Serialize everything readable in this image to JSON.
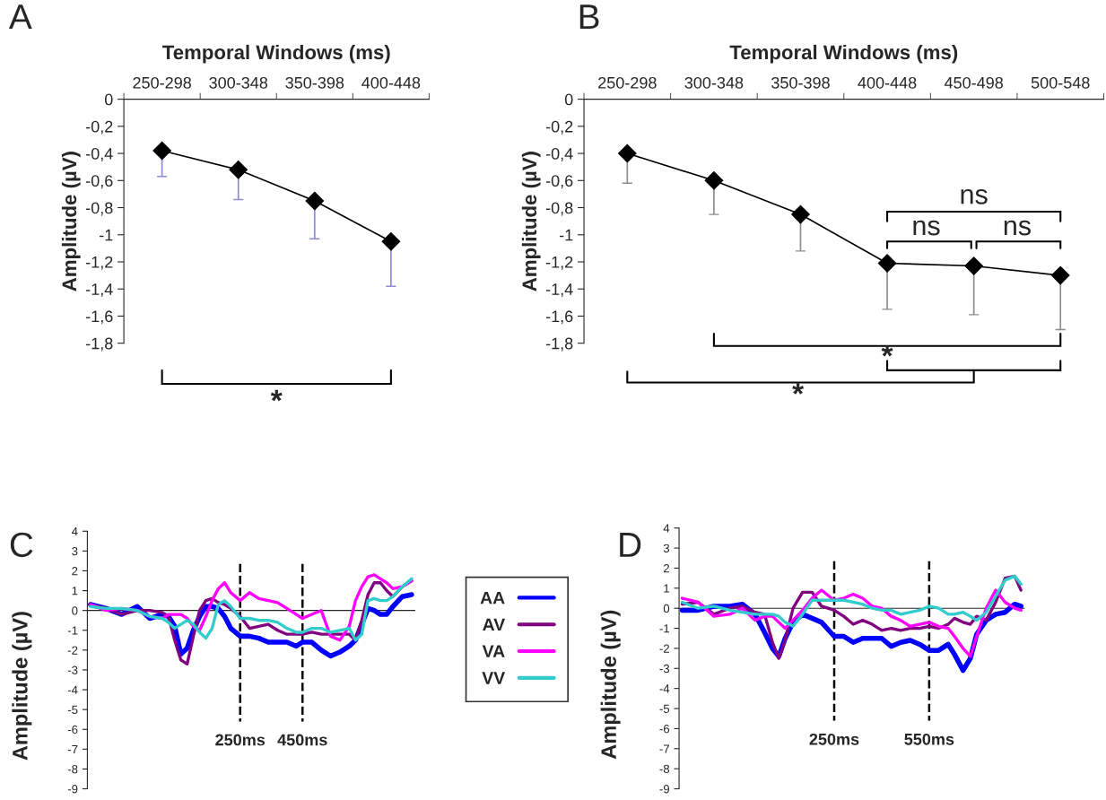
{
  "chart_data": [
    {
      "type": "line",
      "title": "A",
      "xlabel": "Temporal Windows (ms)",
      "ylabel": "Amplitude (µV)",
      "categories": [
        "250-298",
        "300-348",
        "350-398",
        "400-448"
      ],
      "series": [
        {
          "color": "#000000",
          "values": [
            -0.38,
            -0.52,
            -0.75,
            -1.05
          ],
          "errors": [
            [
              -0.57,
              -0.38
            ],
            [
              -0.74,
              -0.52
            ],
            [
              -1.03,
              -0.75
            ],
            [
              -1.38,
              -1.05
            ]
          ]
        }
      ],
      "ylim": [
        -1.8,
        0
      ],
      "yticks": [
        0,
        {
          "value": -0.2,
          "label": "-0,2"
        },
        {
          "value": -0.4,
          "label": "-0,4"
        },
        {
          "value": -0.6,
          "label": "-0,6"
        },
        {
          "value": -0.8,
          "label": "-0,8"
        },
        -1,
        {
          "value": -1.2,
          "label": "-1,2"
        },
        {
          "value": -1.4,
          "label": "-1,4"
        },
        {
          "value": -1.6,
          "label": "-1,6"
        },
        {
          "value": -1.8,
          "label": "-1,8"
        }
      ],
      "marker": "diamond",
      "annotations": [
        "*"
      ]
    },
    {
      "type": "line",
      "title": "B",
      "xlabel": "Temporal Windows (ms)",
      "ylabel": "Amplitude (µV)",
      "categories": [
        "250-298",
        "300-348",
        "350-398",
        "400-448",
        "450-498",
        "500-548"
      ],
      "series": [
        {
          "color": "#000000",
          "values": [
            -0.4,
            -0.6,
            -0.85,
            -1.21,
            -1.23,
            -1.3
          ],
          "errors": [
            [
              -0.62,
              -0.4
            ],
            [
              -0.85,
              -0.6
            ],
            [
              -1.12,
              -0.85
            ],
            [
              -1.55,
              -1.21
            ],
            [
              -1.59,
              -1.23
            ],
            [
              -1.7,
              -1.3
            ]
          ]
        }
      ],
      "ylim": [
        -1.8,
        0
      ],
      "yticks": [
        0,
        {
          "value": -0.2,
          "label": "-0,2"
        },
        {
          "value": -0.4,
          "label": "-0,4"
        },
        {
          "value": -0.6,
          "label": "-0,6"
        },
        {
          "value": -0.8,
          "label": "-0,8"
        },
        -1,
        {
          "value": -1.2,
          "label": "-1,2"
        },
        {
          "value": -1.4,
          "label": "-1,4"
        },
        {
          "value": -1.6,
          "label": "-1,6"
        },
        {
          "value": -1.8,
          "label": "-1,8"
        }
      ],
      "marker": "diamond",
      "annotations": [
        "ns",
        "ns",
        "ns",
        "*",
        "*"
      ]
    },
    {
      "type": "line",
      "title": "C",
      "ylabel": "Amplitude (µV)",
      "x": [
        -230,
        -180,
        -130,
        -80,
        -40,
        0,
        20,
        40,
        60,
        80,
        100,
        120,
        140,
        160,
        180,
        200,
        220,
        250,
        280,
        310,
        340,
        370,
        400,
        430,
        450,
        480,
        510,
        540,
        570,
        600,
        620,
        640,
        660,
        680,
        700,
        720,
        740,
        770,
        800
      ],
      "series": [
        {
          "name": "AA",
          "color": "#0000ff",
          "values": [
            0.3,
            0.1,
            -0.2,
            0.2,
            -0.4,
            -0.2,
            -0.3,
            -0.8,
            -2.2,
            -1.9,
            -1.0,
            -0.3,
            0.2,
            0.2,
            0.1,
            -0.3,
            -0.9,
            -1.3,
            -1.3,
            -1.4,
            -1.6,
            -1.6,
            -1.6,
            -1.8,
            -1.6,
            -1.6,
            -2.0,
            -2.3,
            -2.1,
            -1.8,
            -1.5,
            -0.7,
            0.1,
            0.0,
            -0.2,
            -0.2,
            0.2,
            0.7,
            0.8
          ]
        },
        {
          "name": "AV",
          "color": "#800080",
          "values": [
            0.3,
            0.1,
            -0.2,
            0.0,
            0.0,
            -0.1,
            -0.3,
            -1.5,
            -2.5,
            -2.7,
            -1.3,
            0.0,
            0.5,
            0.6,
            0.4,
            0.3,
            0.1,
            -0.3,
            -0.9,
            -0.8,
            -0.7,
            -1.0,
            -1.2,
            -1.2,
            -1.2,
            -1.1,
            -1.2,
            -1.2,
            -1.2,
            -1.2,
            -1.5,
            -0.5,
            0.8,
            1.4,
            1.4,
            1.0,
            0.7,
            1.2,
            1.5
          ]
        },
        {
          "name": "VA",
          "color": "#ff00ff",
          "values": [
            0.3,
            0.0,
            0.1,
            0.0,
            -0.3,
            -0.4,
            -0.2,
            -0.2,
            -0.2,
            -0.4,
            -0.8,
            -1.0,
            -0.3,
            0.5,
            1.1,
            1.4,
            0.9,
            0.5,
            0.9,
            0.6,
            0.5,
            0.4,
            0.1,
            -0.2,
            -0.4,
            -0.2,
            0.0,
            -1.3,
            -1.5,
            -0.8,
            0.5,
            1.2,
            1.7,
            1.8,
            1.6,
            1.4,
            1.1,
            1.2,
            1.5
          ]
        },
        {
          "name": "VV",
          "color": "#33cccc",
          "values": [
            0.2,
            0.1,
            0.1,
            0.0,
            -0.3,
            -0.4,
            -0.6,
            -0.9,
            -0.7,
            -0.5,
            -0.7,
            -1.1,
            -1.4,
            -0.9,
            0.3,
            0.5,
            0.2,
            -0.4,
            -0.4,
            -0.5,
            -0.5,
            -0.6,
            -0.9,
            -1.1,
            -1.1,
            -0.9,
            -0.9,
            -1.1,
            -1.0,
            -0.9,
            -1.5,
            -1.2,
            0.5,
            0.6,
            0.5,
            0.5,
            0.7,
            1.2,
            1.6
          ]
        }
      ],
      "xlim": [
        -240,
        810
      ],
      "ylim": [
        -9,
        4
      ],
      "yticks": [
        -9,
        -8,
        -7,
        -6,
        -5,
        -4,
        -3,
        -2,
        -1,
        0,
        1,
        2,
        3,
        4
      ],
      "tick_labels": "y",
      "legend": "right",
      "ref_lines": [
        {
          "axis": "x",
          "value": 250,
          "label": "250ms",
          "color": "#000000",
          "line_style": "dashed"
        },
        {
          "axis": "x",
          "value": 450,
          "label": "450ms",
          "color": "#000000",
          "line_style": "dashed"
        }
      ]
    },
    {
      "type": "line",
      "title": "D",
      "ylabel": "Amplitude (µV)",
      "x": [
        -230,
        -180,
        -130,
        -80,
        -40,
        0,
        30,
        55,
        75,
        95,
        120,
        150,
        180,
        210,
        250,
        280,
        310,
        340,
        370,
        400,
        430,
        460,
        490,
        520,
        550,
        580,
        610,
        630,
        657,
        680,
        700,
        730,
        760,
        790,
        820,
        840
      ],
      "series": [
        {
          "color": "#0000ff",
          "values": [
            -0.1,
            -0.1,
            0.1,
            0.1,
            0.2,
            -0.3,
            -1.2,
            -2.0,
            -2.4,
            -1.5,
            -0.7,
            -0.3,
            -0.5,
            -0.7,
            -1.4,
            -1.4,
            -1.7,
            -1.5,
            -1.5,
            -1.5,
            -1.9,
            -1.7,
            -1.6,
            -1.8,
            -2.1,
            -2.1,
            -1.8,
            -2.3,
            -3.1,
            -2.5,
            -1.3,
            -0.6,
            -0.3,
            -0.2,
            0.2,
            0.1
          ]
        },
        {
          "color": "#800080",
          "values": [
            0.2,
            0.3,
            -0.3,
            0.0,
            0.1,
            -0.2,
            -0.3,
            -1.7,
            -2.5,
            -1.6,
            0.0,
            0.8,
            0.8,
            0.1,
            -0.1,
            -0.4,
            -0.8,
            -0.6,
            -0.8,
            -1.1,
            -1.0,
            -1.1,
            -1.0,
            -1.0,
            -0.9,
            -1.0,
            -0.8,
            -0.5,
            -0.7,
            -0.8,
            -0.4,
            -0.6,
            0.3,
            1.5,
            1.6,
            0.9
          ]
        },
        {
          "color": "#ff00ff",
          "values": [
            0.5,
            0.3,
            -0.4,
            -0.3,
            0.0,
            -0.6,
            -0.4,
            -0.4,
            -0.7,
            -1.0,
            -0.6,
            -0.1,
            0.5,
            0.9,
            0.4,
            0.5,
            0.7,
            0.5,
            0.1,
            0.0,
            -0.4,
            -0.6,
            -0.9,
            -0.8,
            -0.7,
            -0.9,
            -1.0,
            -1.4,
            -2.0,
            -2.4,
            -1.4,
            0.0,
            0.9,
            0.3,
            0.0,
            -0.1
          ]
        },
        {
          "color": "#33cccc",
          "values": [
            0.3,
            0.0,
            0.1,
            -0.1,
            -0.2,
            -0.3,
            -0.3,
            -0.3,
            -0.4,
            -0.7,
            -0.9,
            -0.3,
            0.4,
            0.4,
            0.4,
            0.4,
            0.3,
            0.2,
            0.0,
            -0.1,
            -0.1,
            -0.3,
            -0.2,
            -0.1,
            0.1,
            0.0,
            -0.3,
            -0.3,
            -0.2,
            -0.4,
            -0.6,
            -0.2,
            0.6,
            1.4,
            1.6,
            1.2
          ]
        }
      ],
      "xlim": [
        -240,
        850
      ],
      "ylim": [
        -9,
        4
      ],
      "yticks": [
        -9,
        -8,
        -7,
        -6,
        -5,
        -4,
        -3,
        -2,
        -1,
        0,
        1,
        2,
        3,
        4
      ],
      "tick_labels": "y",
      "ref_lines": [
        {
          "axis": "x",
          "value": 250,
          "label": "250ms",
          "color": "#000000",
          "line_style": "dashed"
        },
        {
          "axis": "x",
          "value": 550,
          "label": "550ms",
          "color": "#000000",
          "line_style": "dashed"
        }
      ]
    }
  ]
}
